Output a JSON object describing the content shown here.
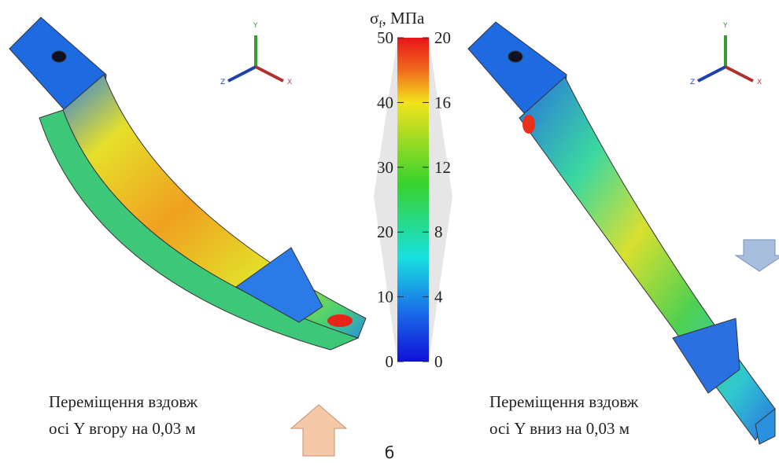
{
  "colorbar": {
    "title": "σ",
    "title_sub": "f",
    "title_unit": ", МПа",
    "left_ticks": [
      0,
      10,
      20,
      30,
      40,
      50
    ],
    "right_ticks": [
      0,
      4,
      8,
      12,
      16,
      20
    ]
  },
  "left_panel": {
    "axis_y": "Y",
    "axis_z": "Z",
    "axis_x": "X",
    "caption": [
      "Переміщення вздовж",
      "осі Y вгору на  0,03 м"
    ]
  },
  "right_panel": {
    "axis_y": "Y",
    "axis_z": "Z",
    "axis_x": "X",
    "caption": [
      "Переміщення вздовж",
      "осі Y вниз на  0,03 м"
    ]
  },
  "label": "б"
}
